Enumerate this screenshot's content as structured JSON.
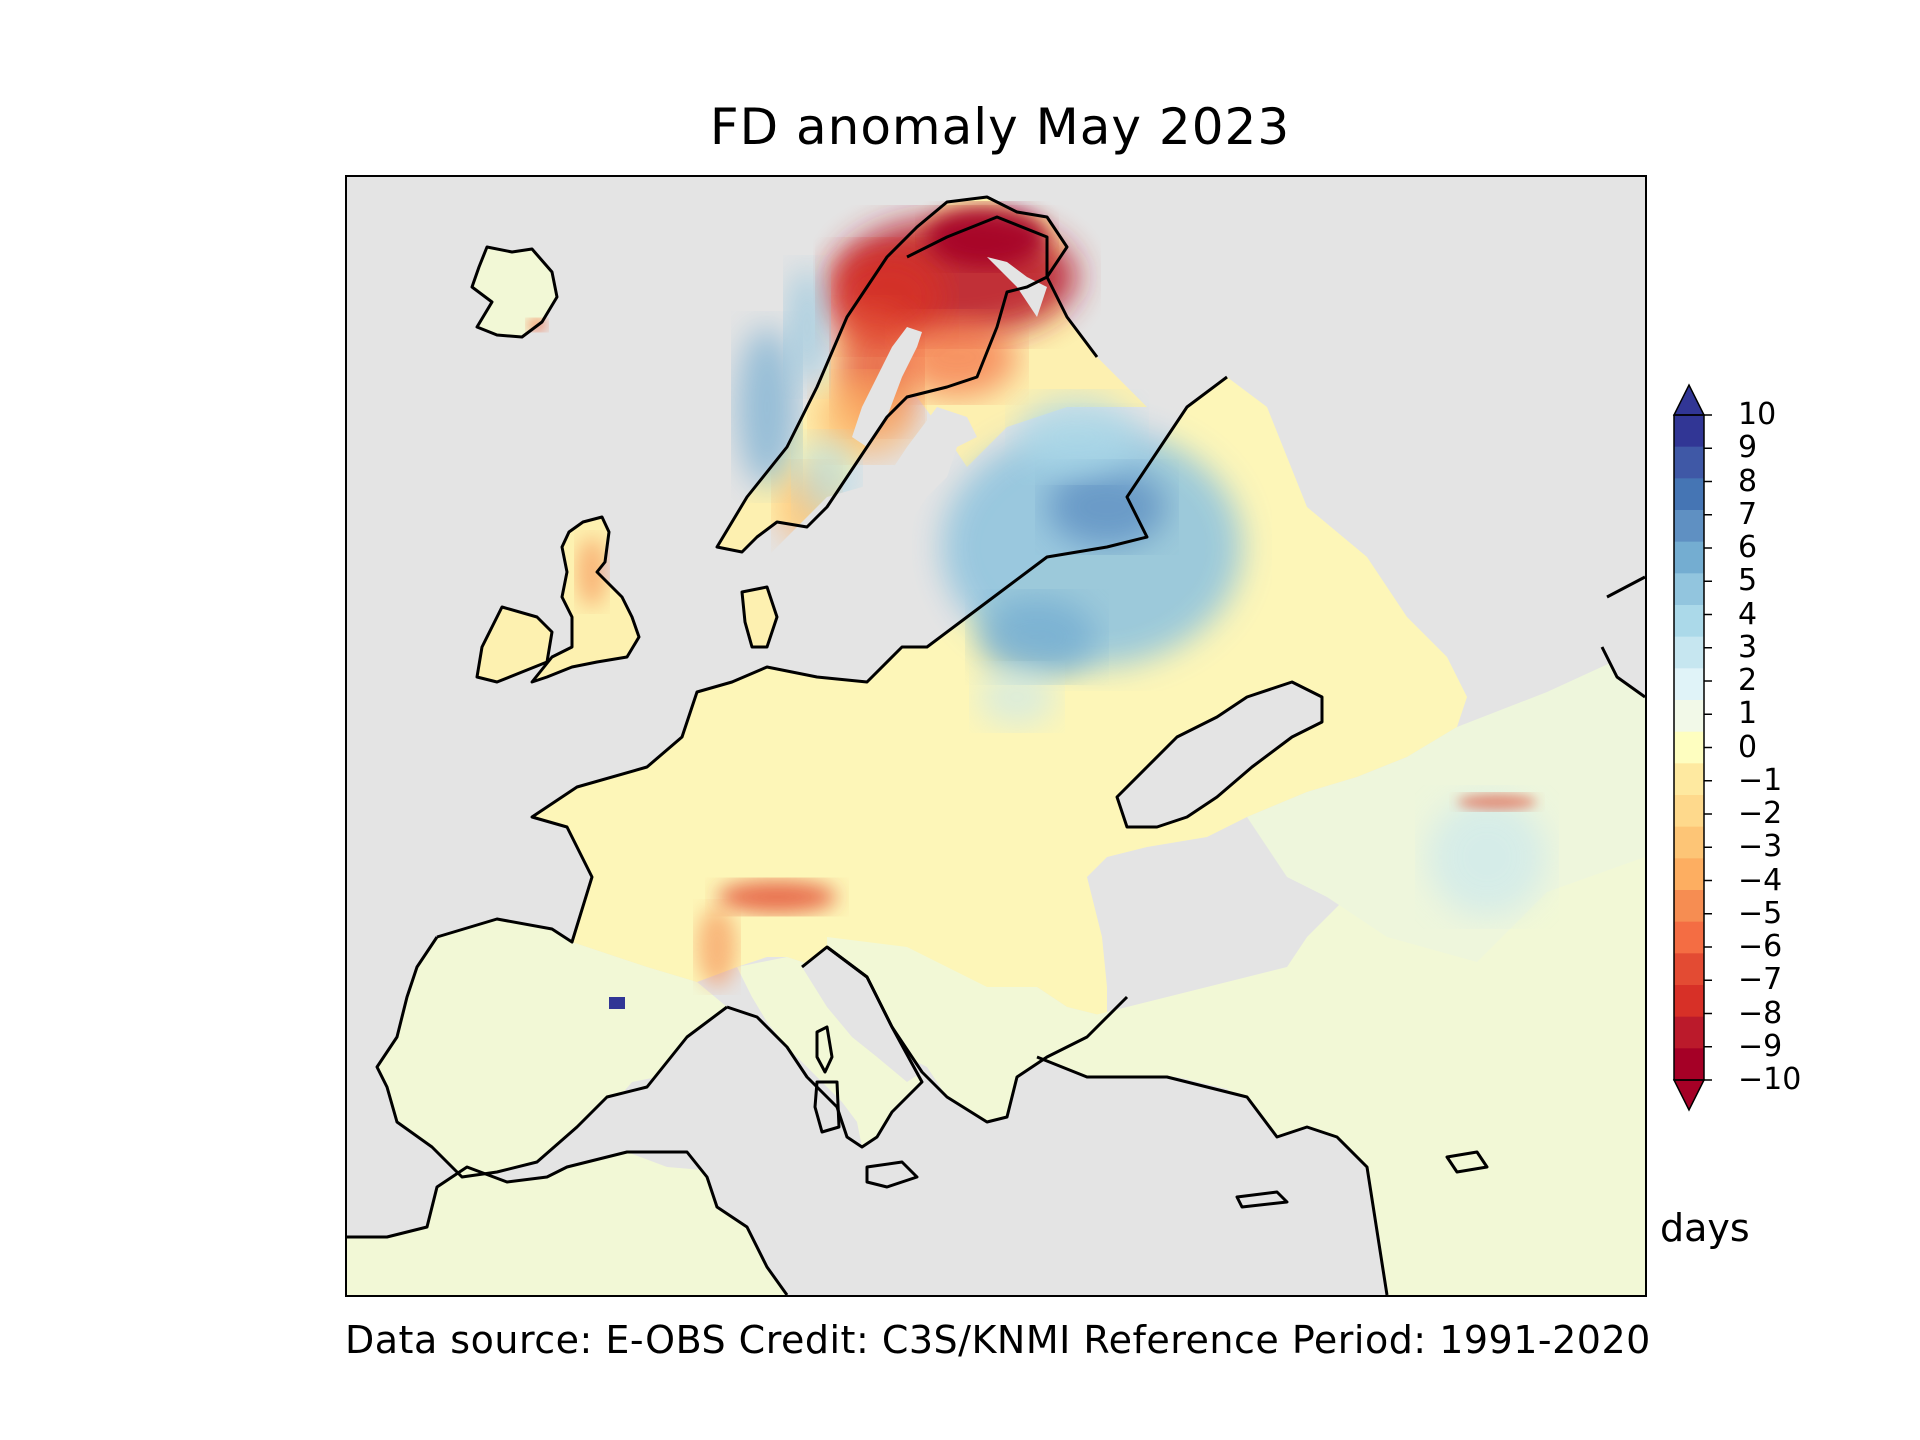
{
  "title": "FD anomaly May 2023",
  "units": "days",
  "credits": "Data source: E-OBS  Credit: C3S/KNMI  Reference Period: 1991-2020",
  "colorbar": {
    "ticks": [
      "10",
      "9",
      "8",
      "7",
      "6",
      "5",
      "4",
      "3",
      "2",
      "1",
      "0",
      "−1",
      "−2",
      "−3",
      "−4",
      "−5",
      "−6",
      "−7",
      "−8",
      "−9",
      "−10"
    ],
    "colors": [
      "#313695",
      "#3f58a6",
      "#4575b4",
      "#5f90c2",
      "#74add1",
      "#92c5de",
      "#abd9e9",
      "#c6e6f0",
      "#e0f3f8",
      "#f2f9e8",
      "#fefec0",
      "#fee9a0",
      "#fed98c",
      "#fdc576",
      "#fdae61",
      "#f68d52",
      "#f46d43",
      "#e34b33",
      "#d73027",
      "#bb1a2b",
      "#a50026"
    ]
  },
  "map": {
    "land_color": "#f2f8d6",
    "sea_color": "#e4e4e4",
    "coastline_color": "#000000"
  }
}
